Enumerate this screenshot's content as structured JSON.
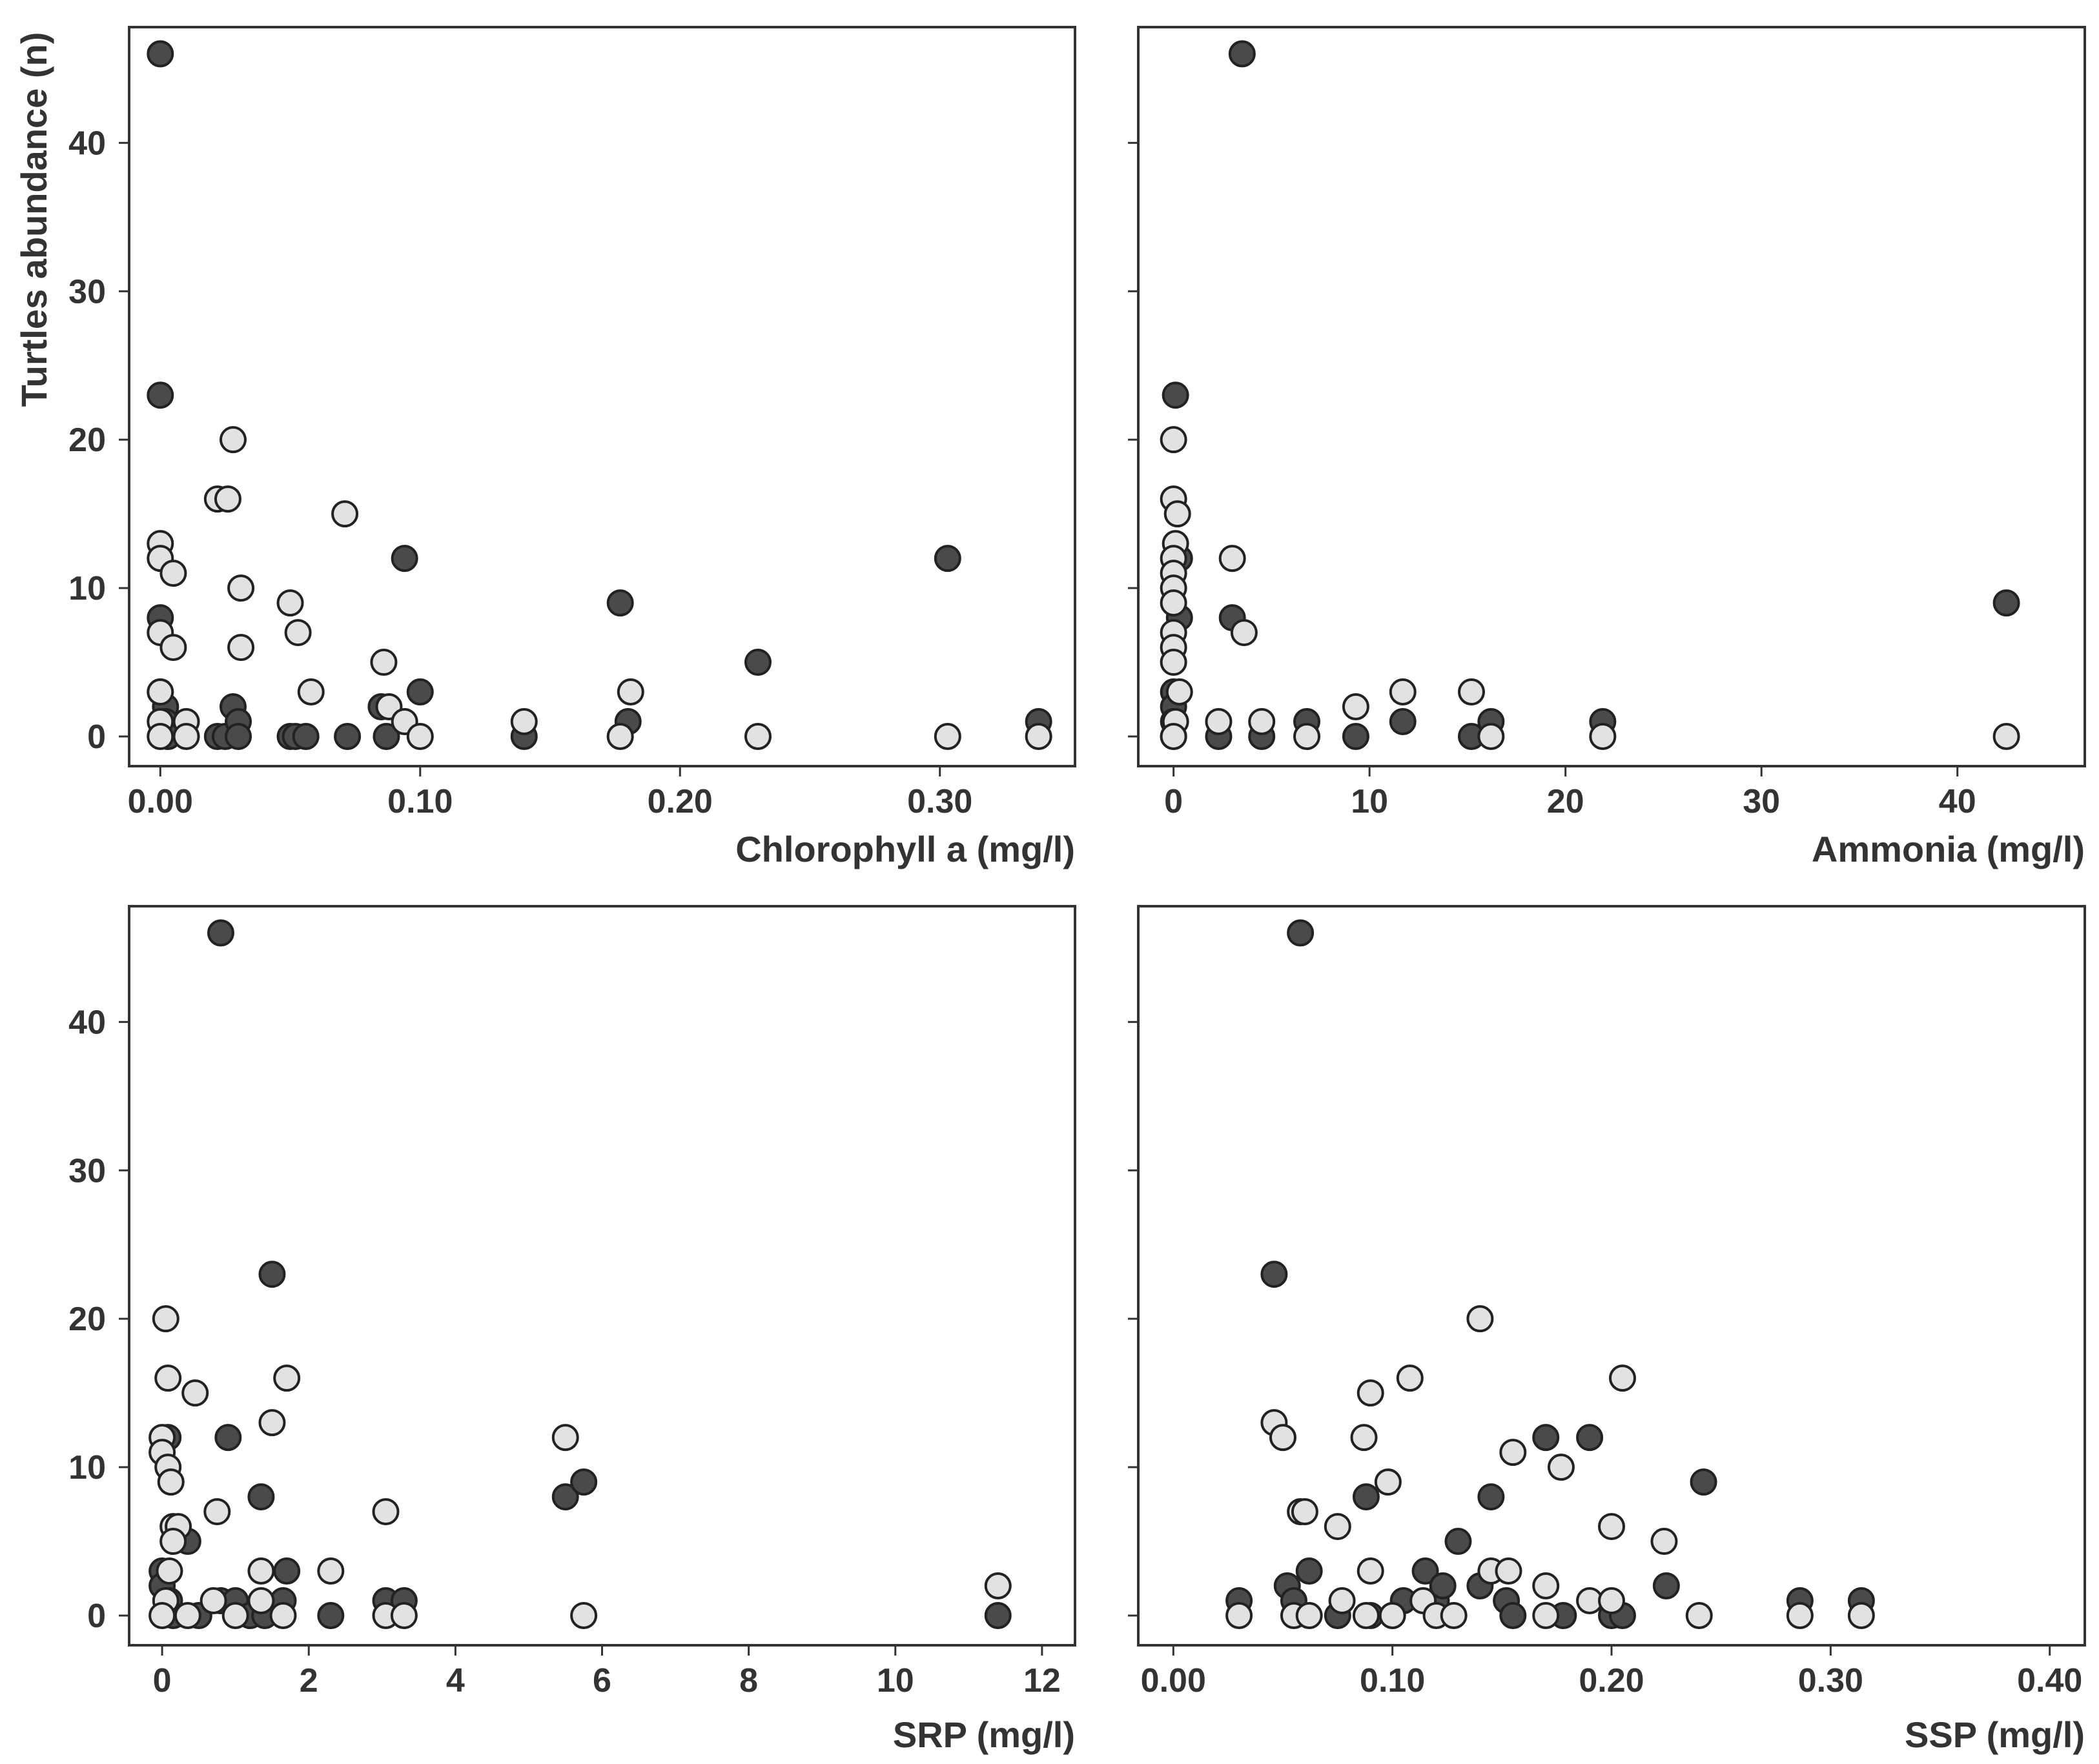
{
  "figure": {
    "ylabel": "Turtles abundance (n)"
  },
  "colors": {
    "dark": "#4a4a4a",
    "light": "#e2e2e2",
    "stroke": "#222222",
    "text": "#333333"
  },
  "chart_data": [
    {
      "id": "chl",
      "type": "scatter",
      "title": "",
      "xlabel": "Chlorophyll a (mg/l)",
      "ylabel": "Turtles abundance (n)",
      "xlim": [
        -0.012,
        0.352
      ],
      "ylim": [
        -2,
        47.8
      ],
      "xticks": [
        0.0,
        0.1,
        0.2,
        0.3
      ],
      "xtick_labels": [
        "0.00",
        "0.10",
        "0.20",
        "0.30"
      ],
      "yticks": [
        0,
        10,
        20,
        30,
        40
      ],
      "ytick_labels": [
        "0",
        "10",
        "20",
        "30",
        "40"
      ],
      "show_ytick_labels": true,
      "series": [
        {
          "name": "dark",
          "points": [
            [
              0.0,
              46
            ],
            [
              0.0,
              23
            ],
            [
              0.0,
              8
            ],
            [
              0.0,
              3
            ],
            [
              0.002,
              2
            ],
            [
              0.002,
              1
            ],
            [
              0.003,
              0
            ],
            [
              0.022,
              0
            ],
            [
              0.025,
              0
            ],
            [
              0.028,
              2
            ],
            [
              0.03,
              1
            ],
            [
              0.03,
              0
            ],
            [
              0.05,
              0
            ],
            [
              0.052,
              0
            ],
            [
              0.056,
              0
            ],
            [
              0.072,
              0
            ],
            [
              0.085,
              2
            ],
            [
              0.087,
              0
            ],
            [
              0.094,
              12
            ],
            [
              0.1,
              3
            ],
            [
              0.14,
              0
            ],
            [
              0.177,
              9
            ],
            [
              0.18,
              1
            ],
            [
              0.23,
              5
            ],
            [
              0.303,
              12
            ],
            [
              0.338,
              1
            ]
          ]
        },
        {
          "name": "light",
          "points": [
            [
              0.0,
              13
            ],
            [
              0.0,
              12
            ],
            [
              0.0,
              7
            ],
            [
              0.0,
              3
            ],
            [
              0.0,
              1
            ],
            [
              0.0,
              0
            ],
            [
              0.005,
              11
            ],
            [
              0.005,
              6
            ],
            [
              0.01,
              1
            ],
            [
              0.01,
              0
            ],
            [
              0.022,
              16
            ],
            [
              0.026,
              16
            ],
            [
              0.028,
              20
            ],
            [
              0.031,
              10
            ],
            [
              0.031,
              6
            ],
            [
              0.05,
              9
            ],
            [
              0.053,
              7
            ],
            [
              0.058,
              3
            ],
            [
              0.071,
              15
            ],
            [
              0.086,
              5
            ],
            [
              0.088,
              2
            ],
            [
              0.094,
              1
            ],
            [
              0.1,
              0
            ],
            [
              0.14,
              1
            ],
            [
              0.177,
              0
            ],
            [
              0.181,
              3
            ],
            [
              0.23,
              0
            ],
            [
              0.303,
              0
            ],
            [
              0.338,
              0
            ]
          ]
        }
      ]
    },
    {
      "id": "amm",
      "type": "scatter",
      "title": "",
      "xlabel": "Ammonia (mg/l)",
      "ylabel": "",
      "xlim": [
        -1.8,
        46.5
      ],
      "ylim": [
        -2,
        47.8
      ],
      "xticks": [
        0,
        10,
        20,
        30,
        40
      ],
      "xtick_labels": [
        "0",
        "10",
        "20",
        "30",
        "40"
      ],
      "yticks": [
        0,
        10,
        20,
        30,
        40
      ],
      "ytick_labels": [
        "0",
        "10",
        "20",
        "30",
        "40"
      ],
      "show_ytick_labels": false,
      "series": [
        {
          "name": "dark",
          "points": [
            [
              3.5,
              46
            ],
            [
              0.1,
              23
            ],
            [
              0.3,
              12
            ],
            [
              0.3,
              8
            ],
            [
              0.0,
              3
            ],
            [
              0.0,
              2
            ],
            [
              0.0,
              1
            ],
            [
              0.0,
              0
            ],
            [
              3.0,
              8
            ],
            [
              2.3,
              0
            ],
            [
              4.5,
              0
            ],
            [
              6.8,
              1
            ],
            [
              9.3,
              0
            ],
            [
              11.7,
              1
            ],
            [
              15.2,
              0
            ],
            [
              16.2,
              1
            ],
            [
              21.9,
              1
            ],
            [
              42.5,
              9
            ]
          ]
        },
        {
          "name": "light",
          "points": [
            [
              0.0,
              20
            ],
            [
              0.0,
              16
            ],
            [
              0.2,
              15
            ],
            [
              0.1,
              13
            ],
            [
              0.0,
              12
            ],
            [
              0.0,
              11
            ],
            [
              0.0,
              10
            ],
            [
              0.0,
              9
            ],
            [
              0.0,
              7
            ],
            [
              0.0,
              6
            ],
            [
              0.0,
              5
            ],
            [
              0.3,
              3
            ],
            [
              0.1,
              1
            ],
            [
              0.0,
              0
            ],
            [
              3.0,
              12
            ],
            [
              3.6,
              7
            ],
            [
              2.3,
              1
            ],
            [
              4.5,
              1
            ],
            [
              6.8,
              0
            ],
            [
              9.3,
              2
            ],
            [
              11.7,
              3
            ],
            [
              15.2,
              3
            ],
            [
              16.2,
              0
            ],
            [
              21.9,
              0
            ],
            [
              42.5,
              0
            ]
          ]
        }
      ]
    },
    {
      "id": "srp",
      "type": "scatter",
      "title": "",
      "xlabel": "SRP (mg/l)",
      "ylabel": "",
      "xlim": [
        -0.45,
        12.45
      ],
      "ylim": [
        -2,
        47.8
      ],
      "xticks": [
        0,
        2,
        4,
        6,
        8,
        10,
        12
      ],
      "xtick_labels": [
        "0",
        "2",
        "4",
        "6",
        "8",
        "10",
        "12"
      ],
      "yticks": [
        0,
        10,
        20,
        30,
        40
      ],
      "ytick_labels": [
        "0",
        "10",
        "20",
        "30",
        "40"
      ],
      "show_ytick_labels": true,
      "series": [
        {
          "name": "dark",
          "points": [
            [
              0.8,
              46
            ],
            [
              1.5,
              23
            ],
            [
              0.08,
              12
            ],
            [
              0.9,
              12
            ],
            [
              1.35,
              8
            ],
            [
              0.35,
              5
            ],
            [
              0.0,
              3
            ],
            [
              0.0,
              2
            ],
            [
              0.1,
              1
            ],
            [
              0.15,
              0
            ],
            [
              0.5,
              0
            ],
            [
              0.8,
              1
            ],
            [
              1.0,
              1
            ],
            [
              1.2,
              0
            ],
            [
              1.4,
              0
            ],
            [
              1.65,
              1
            ],
            [
              1.7,
              3
            ],
            [
              2.3,
              0
            ],
            [
              3.05,
              1
            ],
            [
              3.3,
              1
            ],
            [
              5.5,
              8
            ],
            [
              5.75,
              9
            ],
            [
              11.4,
              0
            ]
          ]
        },
        {
          "name": "light",
          "points": [
            [
              0.05,
              20
            ],
            [
              0.08,
              16
            ],
            [
              0.45,
              15
            ],
            [
              0.0,
              12
            ],
            [
              0.0,
              11
            ],
            [
              0.08,
              10
            ],
            [
              0.12,
              9
            ],
            [
              0.15,
              6
            ],
            [
              0.22,
              6
            ],
            [
              0.15,
              5
            ],
            [
              0.1,
              3
            ],
            [
              0.05,
              1
            ],
            [
              0.0,
              0
            ],
            [
              0.35,
              0
            ],
            [
              0.7,
              1
            ],
            [
              0.75,
              7
            ],
            [
              1.0,
              0
            ],
            [
              1.35,
              3
            ],
            [
              1.35,
              1
            ],
            [
              1.5,
              13
            ],
            [
              1.7,
              16
            ],
            [
              1.65,
              0
            ],
            [
              2.3,
              3
            ],
            [
              3.05,
              7
            ],
            [
              3.05,
              0
            ],
            [
              3.3,
              0
            ],
            [
              5.5,
              12
            ],
            [
              5.75,
              0
            ],
            [
              11.4,
              2
            ]
          ]
        }
      ]
    },
    {
      "id": "ssp",
      "type": "scatter",
      "title": "",
      "xlabel": "SSP (mg/l)",
      "ylabel": "",
      "xlim": [
        -0.016,
        0.416
      ],
      "ylim": [
        -2,
        47.8
      ],
      "xticks": [
        0.0,
        0.1,
        0.2,
        0.3,
        0.4
      ],
      "xtick_labels": [
        "0.00",
        "0.10",
        "0.20",
        "0.30",
        "0.40"
      ],
      "yticks": [
        0,
        10,
        20,
        30,
        40
      ],
      "ytick_labels": [
        "0",
        "10",
        "20",
        "30",
        "40"
      ],
      "show_ytick_labels": false,
      "series": [
        {
          "name": "dark",
          "points": [
            [
              0.058,
              46
            ],
            [
              0.046,
              23
            ],
            [
              0.03,
              1
            ],
            [
              0.052,
              2
            ],
            [
              0.055,
              1
            ],
            [
              0.062,
              3
            ],
            [
              0.075,
              0
            ],
            [
              0.088,
              8
            ],
            [
              0.09,
              0
            ],
            [
              0.1,
              0
            ],
            [
              0.105,
              1
            ],
            [
              0.115,
              3
            ],
            [
              0.12,
              1
            ],
            [
              0.123,
              2
            ],
            [
              0.13,
              5
            ],
            [
              0.14,
              2
            ],
            [
              0.145,
              8
            ],
            [
              0.152,
              1
            ],
            [
              0.155,
              0
            ],
            [
              0.17,
              12
            ],
            [
              0.178,
              0
            ],
            [
              0.19,
              12
            ],
            [
              0.2,
              0
            ],
            [
              0.205,
              0
            ],
            [
              0.225,
              2
            ],
            [
              0.242,
              9
            ],
            [
              0.286,
              1
            ],
            [
              0.314,
              1
            ]
          ]
        },
        {
          "name": "light",
          "points": [
            [
              0.046,
              13
            ],
            [
              0.05,
              12
            ],
            [
              0.058,
              7
            ],
            [
              0.06,
              7
            ],
            [
              0.075,
              6
            ],
            [
              0.09,
              15
            ],
            [
              0.087,
              12
            ],
            [
              0.098,
              9
            ],
            [
              0.108,
              16
            ],
            [
              0.09,
              3
            ],
            [
              0.077,
              1
            ],
            [
              0.03,
              0
            ],
            [
              0.055,
              0
            ],
            [
              0.062,
              0
            ],
            [
              0.088,
              0
            ],
            [
              0.1,
              0
            ],
            [
              0.114,
              1
            ],
            [
              0.12,
              0
            ],
            [
              0.128,
              0
            ],
            [
              0.14,
              20
            ],
            [
              0.145,
              3
            ],
            [
              0.153,
              3
            ],
            [
              0.155,
              11
            ],
            [
              0.17,
              2
            ],
            [
              0.17,
              0
            ],
            [
              0.177,
              10
            ],
            [
              0.19,
              1
            ],
            [
              0.2,
              6
            ],
            [
              0.2,
              1
            ],
            [
              0.205,
              16
            ],
            [
              0.224,
              5
            ],
            [
              0.24,
              0
            ],
            [
              0.286,
              0
            ],
            [
              0.314,
              0
            ]
          ]
        }
      ]
    }
  ]
}
